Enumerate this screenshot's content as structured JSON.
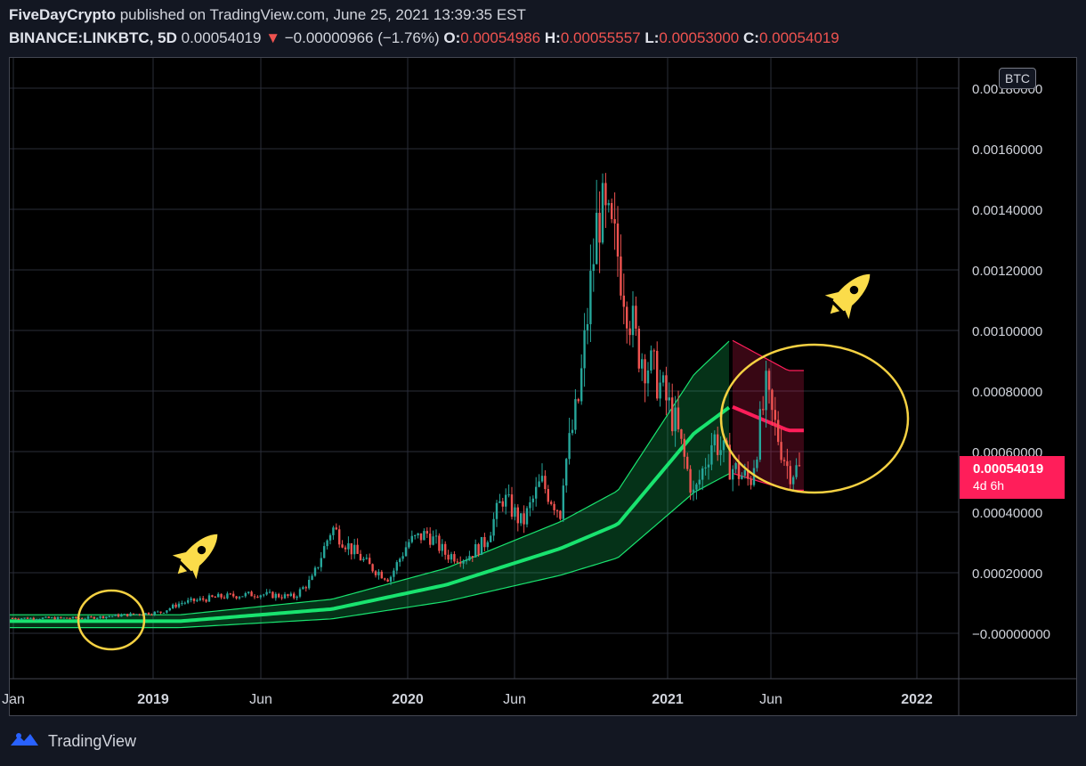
{
  "header": {
    "author": "FiveDayCrypto",
    "published": "published on TradingView.com, June 25, 2021 13:39:35 EST",
    "symbol": "BINANCE:LINKBTC, 5D",
    "last": "0.00054019",
    "change": "−0.00000966 (−1.76%)",
    "o_label": "O:",
    "o": "0.00054986",
    "h_label": "H:",
    "h": "0.00055557",
    "l_label": "L:",
    "l": "0.00053000",
    "c_label": "C:",
    "c": "0.00054019"
  },
  "currency_button": "BTC",
  "price_tag": {
    "price": "0.00054019",
    "countdown": "4d 6h"
  },
  "footer": {
    "brand": "TradingView"
  },
  "colors": {
    "up": "#26a69a",
    "down": "#ef5350",
    "band": "#19e36f",
    "band_red": "#ff1e5a",
    "circle": "#f5d142",
    "rocket": "#fbdc4a"
  },
  "chart_data": {
    "type": "candlestick",
    "ylim": [
      -0.00015,
      0.0019
    ],
    "y_ticks": [
      "0.00180000",
      "0.00160000",
      "0.00140000",
      "0.00120000",
      "0.00100000",
      "0.00080000",
      "0.00060000",
      "0.00040000",
      "0.00020000",
      "−0.00000000"
    ],
    "x_ticks": [
      "Jan",
      "2019",
      "Jun",
      "2020",
      "Jun",
      "2021",
      "Jun",
      "2022"
    ],
    "price_series": [
      {
        "t": "2018-01",
        "v": 5e-05
      },
      {
        "t": "2018-05",
        "v": 5e-05
      },
      {
        "t": "2018-07",
        "v": 6e-05
      },
      {
        "t": "2018-09",
        "v": 7e-05
      },
      {
        "t": "2018-10",
        "v": 0.0001
      },
      {
        "t": "2018-12",
        "v": 0.00012
      },
      {
        "t": "2019-02",
        "v": 0.00013
      },
      {
        "t": "2019-04",
        "v": 0.00012
      },
      {
        "t": "2019-05",
        "v": 0.00018
      },
      {
        "t": "2019-06",
        "v": 0.00035
      },
      {
        "t": "2019-07",
        "v": 0.00028
      },
      {
        "t": "2019-08",
        "v": 0.00022
      },
      {
        "t": "2019-09",
        "v": 0.00018
      },
      {
        "t": "2019-10",
        "v": 0.0003
      },
      {
        "t": "2019-11",
        "v": 0.00033
      },
      {
        "t": "2019-12",
        "v": 0.00026
      },
      {
        "t": "2020-01",
        "v": 0.00025
      },
      {
        "t": "2020-02",
        "v": 0.0003
      },
      {
        "t": "2020-03",
        "v": 0.00045
      },
      {
        "t": "2020-04",
        "v": 0.00036
      },
      {
        "t": "2020-05",
        "v": 0.0005
      },
      {
        "t": "2020-06",
        "v": 0.0004
      },
      {
        "t": "2020-06",
        "v": 0.00048
      },
      {
        "t": "2020-07",
        "v": 0.00078
      },
      {
        "t": "2020-08",
        "v": 0.0014
      },
      {
        "t": "2020-09",
        "v": 0.00125
      },
      {
        "t": "2020-10",
        "v": 0.00095
      },
      {
        "t": "2020-11",
        "v": 0.00085
      },
      {
        "t": "2020-12",
        "v": 0.0007
      },
      {
        "t": "2021-01",
        "v": 0.00045
      },
      {
        "t": "2021-02",
        "v": 0.00065
      },
      {
        "t": "2021-03",
        "v": 0.00055
      },
      {
        "t": "2021-04",
        "v": 0.0005
      },
      {
        "t": "2021-05",
        "v": 0.00085
      },
      {
        "t": "2021-05",
        "v": 0.00075
      },
      {
        "t": "2021-06",
        "v": 0.00054
      }
    ],
    "band_mid": [
      {
        "t": "2018-01",
        "v": 4e-05
      },
      {
        "t": "2018-10",
        "v": 4e-05
      },
      {
        "t": "2019-06",
        "v": 8e-05
      },
      {
        "t": "2019-12",
        "v": 0.00016
      },
      {
        "t": "2020-06",
        "v": 0.00028
      },
      {
        "t": "2020-09",
        "v": 0.00036
      },
      {
        "t": "2021-01",
        "v": 0.00066
      },
      {
        "t": "2021-03",
        "v": 0.00075
      },
      {
        "t": "2021-06",
        "v": 0.00067
      }
    ],
    "grid": true
  }
}
